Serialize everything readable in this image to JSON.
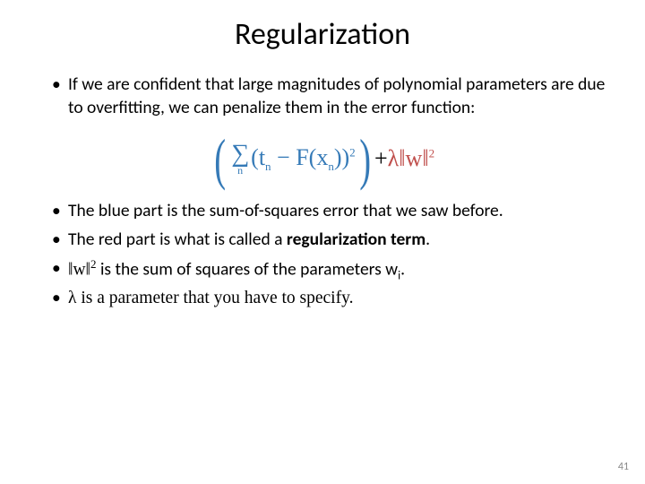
{
  "title": "Regularization",
  "bullets": {
    "b1": "If we are confident that large magnitudes of polynomial parameters are due to overfitting, we can penalize them in the error function:",
    "b2": "The blue part is the sum-of-squares error that we saw before.",
    "b3_prefix": "The red part is what is called a ",
    "b3_bold": "regularization term",
    "b3_suffix": ".",
    "b4_prefix": "‖w‖",
    "b4_sup": "2",
    "b4_rest": " is the sum of squares of the parameters w",
    "b4_sub": "i",
    "b4_end": ".",
    "b5": "λ is a parameter that you have to specify."
  },
  "formula": {
    "lparen": "(",
    "sigma": "∑",
    "sum_sub": "n",
    "inner_l": "(t",
    "tn_sub": "n",
    "minus": " − F(x",
    "xn_sub": "n",
    "inner_r": "))",
    "sq1": "2",
    "rparen": ")",
    "plus": " + ",
    "lambda": "λ‖w‖",
    "sq2": "2"
  },
  "colors": {
    "blue": "#357ab7",
    "red": "#c0504d"
  },
  "page_number": "41"
}
